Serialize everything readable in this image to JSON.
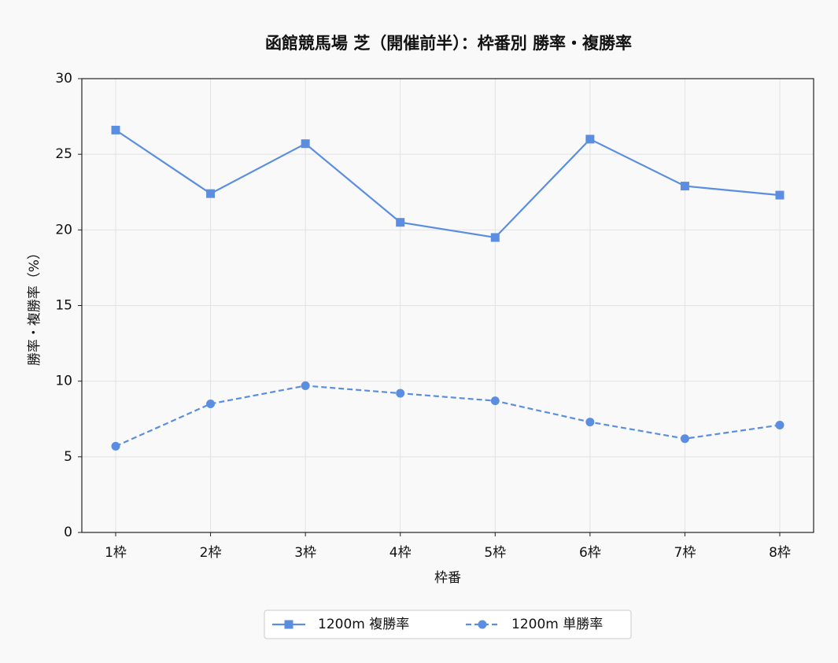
{
  "chart_data": {
    "type": "line",
    "title": "函館競馬場 芝（開催前半）：枠番別 勝率・複勝率",
    "x_label": "枠番",
    "y_label": "勝率・複勝率（%）",
    "categories": [
      "1枠",
      "2枠",
      "3枠",
      "4枠",
      "5枠",
      "6枠",
      "7枠",
      "8枠"
    ],
    "series": [
      {
        "name": "1200m 複勝率",
        "color": "#5b8ee0",
        "marker": "square",
        "linestyle": "solid",
        "values": [
          26.6,
          22.4,
          25.7,
          20.5,
          19.5,
          26.0,
          22.9,
          22.3
        ]
      },
      {
        "name": "1200m 単勝率",
        "color": "#5b8ee0",
        "marker": "circle",
        "linestyle": "dashed",
        "values": [
          5.7,
          8.5,
          9.7,
          9.2,
          8.7,
          7.3,
          6.2,
          7.1
        ]
      }
    ],
    "ylim": [
      0,
      30
    ],
    "yticks": [
      0,
      5,
      10,
      15,
      20,
      25,
      30
    ],
    "grid": true,
    "legend": "bottom"
  }
}
